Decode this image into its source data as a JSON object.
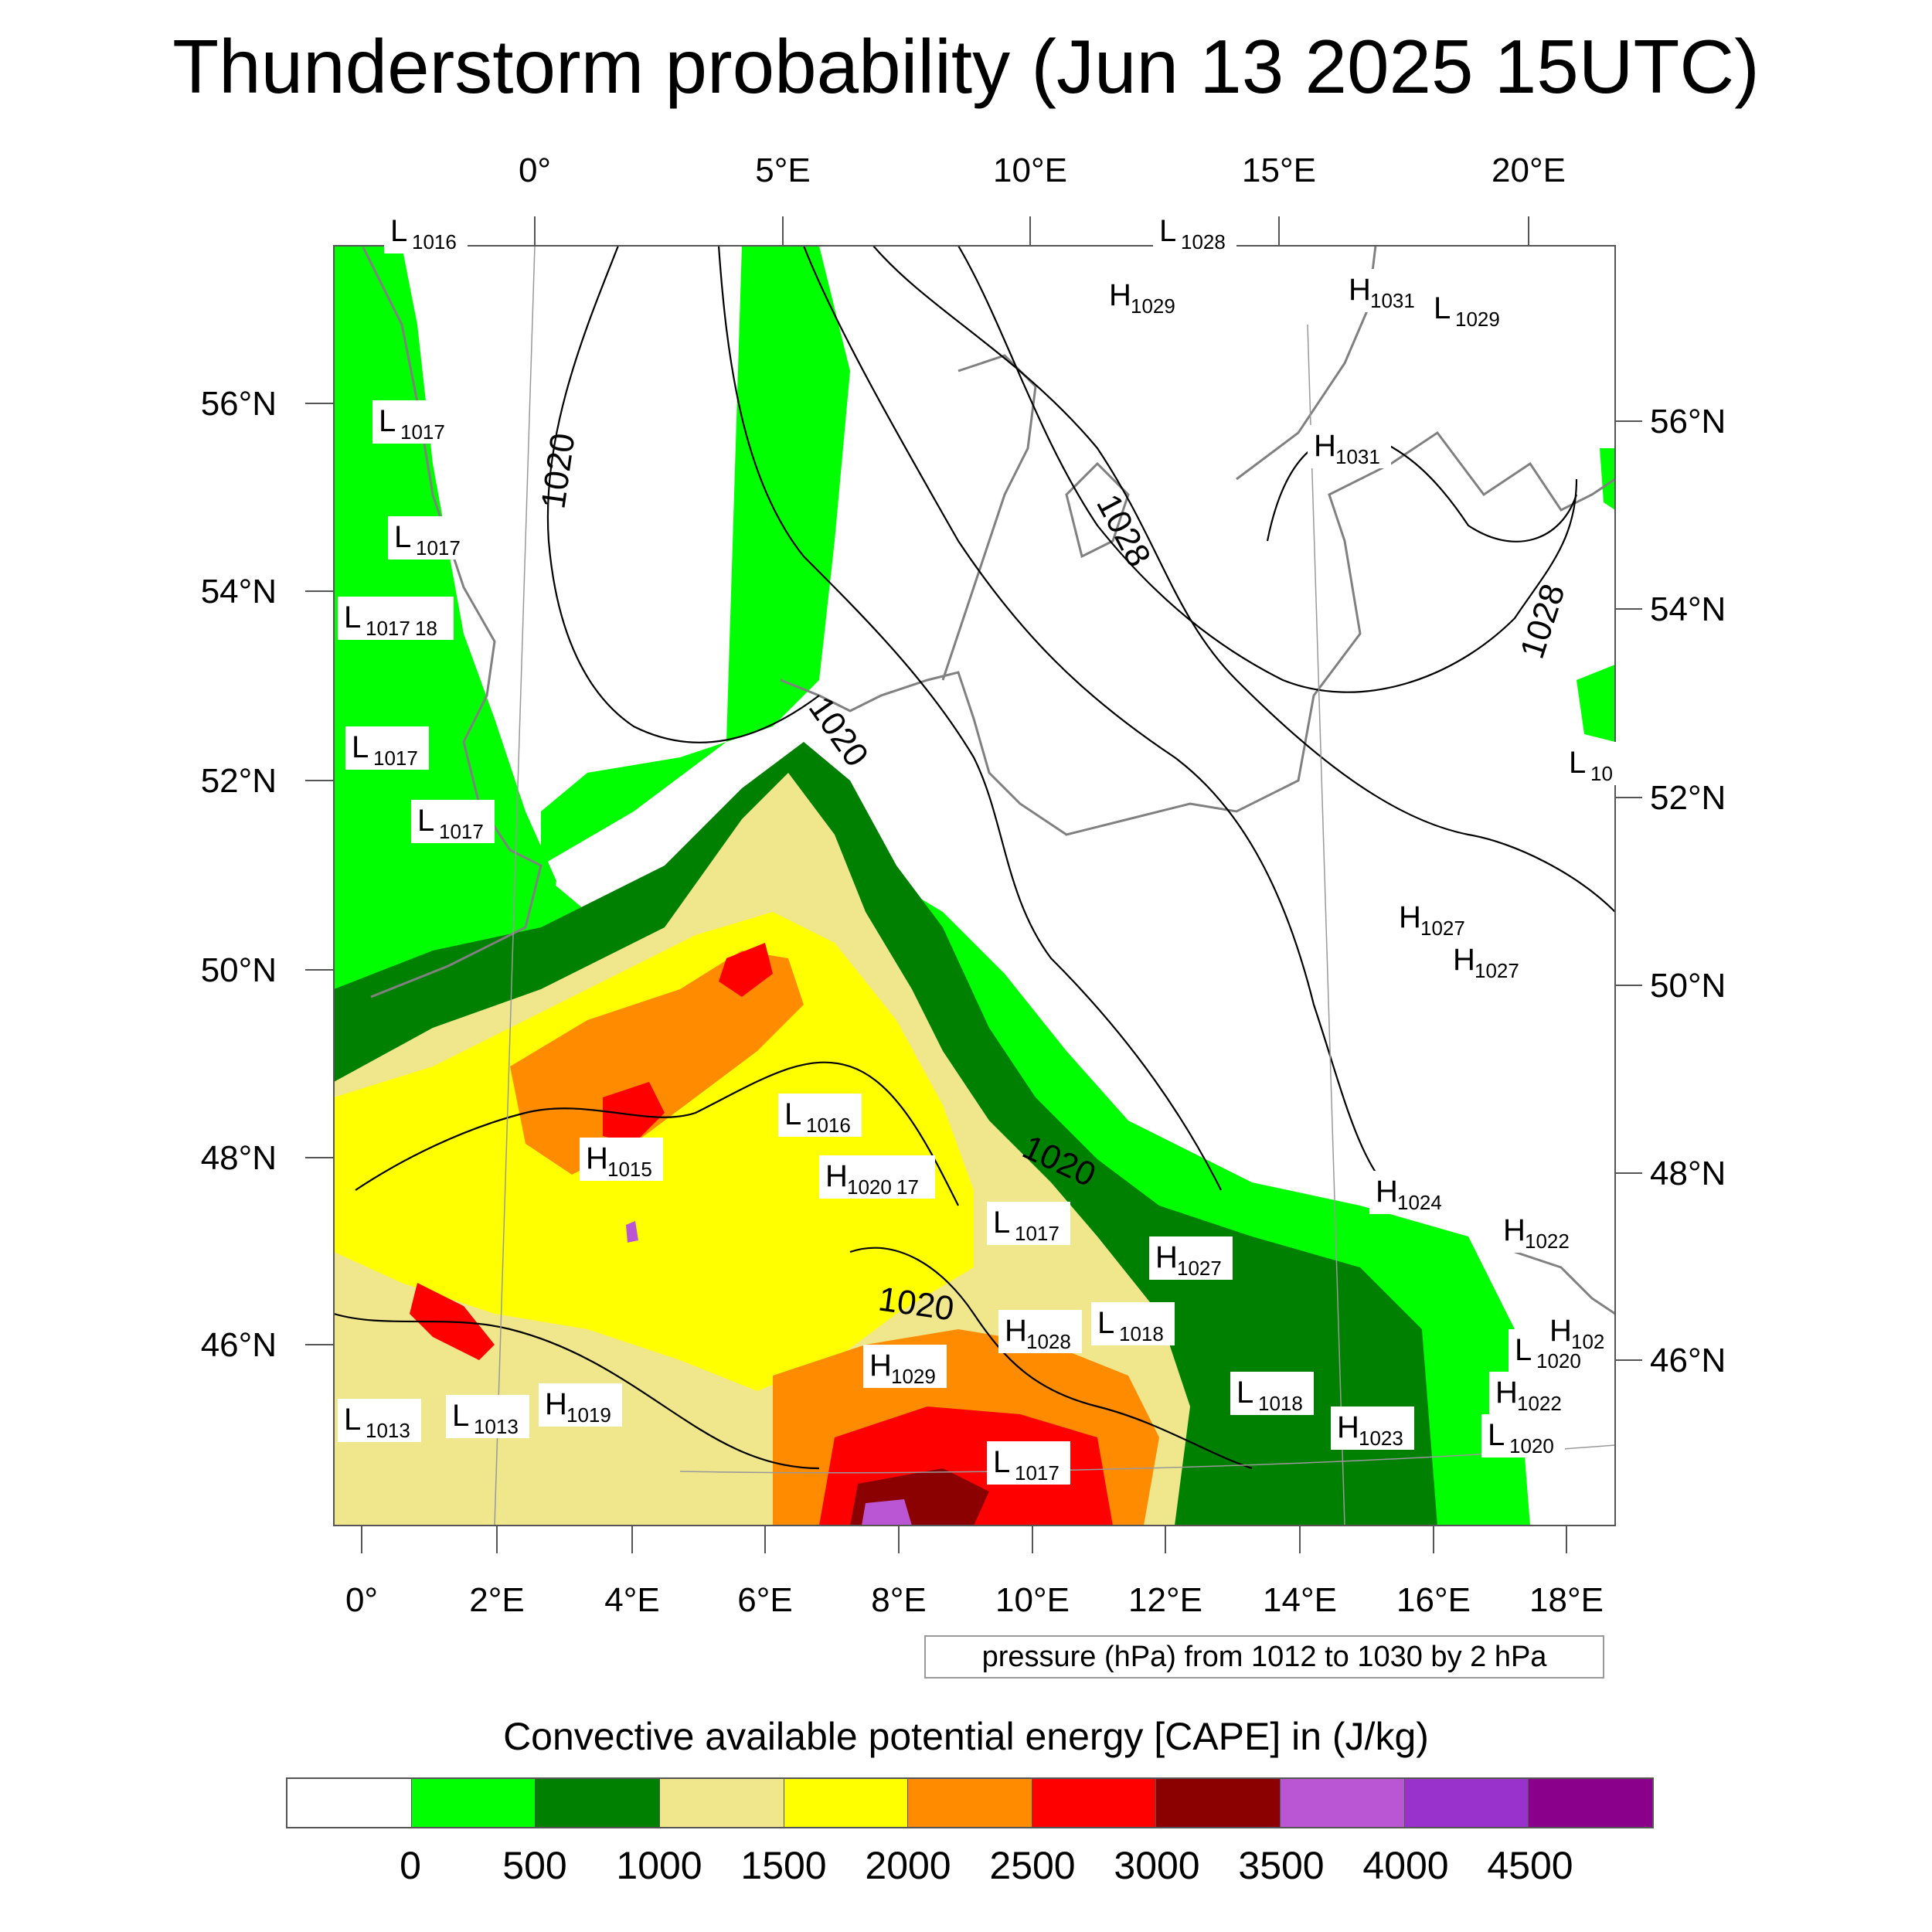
{
  "title": "Thunderstorm probability (Jun 13 2025 15UTC)",
  "top_axis_labels": [
    "0°",
    "5°E",
    "10°E",
    "15°E",
    "20°E"
  ],
  "bottom_axis_labels": [
    "0°",
    "2°E",
    "4°E",
    "6°E",
    "8°E",
    "10°E",
    "12°E",
    "14°E",
    "16°E",
    "18°E"
  ],
  "left_axis_labels": [
    "56°N",
    "54°N",
    "52°N",
    "50°N",
    "48°N",
    "46°N"
  ],
  "right_axis_labels": [
    "56°N",
    "54°N",
    "52°N",
    "50°N",
    "48°N",
    "46°N"
  ],
  "pressure_note": "pressure (hPa) from 1012 to 1030 by 2 hPa",
  "contour_labels": [
    "1020",
    "1020",
    "1028",
    "1028",
    "1020",
    "1020"
  ],
  "pressure_centers": [
    {
      "type": "L",
      "value": "1016"
    },
    {
      "type": "L",
      "value": "1017"
    },
    {
      "type": "L",
      "value": "1017"
    },
    {
      "type": "L",
      "value": "1017",
      "extra": "18"
    },
    {
      "type": "L",
      "value": "1017"
    },
    {
      "type": "L",
      "value": "1017"
    },
    {
      "type": "L",
      "value": "1028"
    },
    {
      "type": "H",
      "value": "1029"
    },
    {
      "type": "H",
      "value": "1031"
    },
    {
      "type": "L",
      "value": "1029"
    },
    {
      "type": "H",
      "value": "1031"
    },
    {
      "type": "L",
      "value": "10"
    },
    {
      "type": "H",
      "value": "1027"
    },
    {
      "type": "H",
      "value": "1027"
    },
    {
      "type": "L",
      "value": "1016"
    },
    {
      "type": "H",
      "value": "1015"
    },
    {
      "type": "H",
      "value": "1020",
      "extra": "17"
    },
    {
      "type": "L",
      "value": "1017"
    },
    {
      "type": "H",
      "value": "1027"
    },
    {
      "type": "H",
      "value": "1024"
    },
    {
      "type": "H",
      "value": "1022"
    },
    {
      "type": "H",
      "value": "1028"
    },
    {
      "type": "L",
      "value": "1018"
    },
    {
      "type": "H",
      "value": "1029"
    },
    {
      "type": "L",
      "value": "1018"
    },
    {
      "type": "H",
      "value": "1019"
    },
    {
      "type": "L",
      "value": "1013"
    },
    {
      "type": "L",
      "value": "1013"
    },
    {
      "type": "H",
      "value": "1023"
    },
    {
      "type": "L",
      "value": "1017"
    },
    {
      "type": "L",
      "value": "1020"
    },
    {
      "type": "H",
      "value": "1022"
    },
    {
      "type": "L",
      "value": "1020"
    },
    {
      "type": "H",
      "value": "102"
    }
  ],
  "colorbar": {
    "title": "Convective available potential energy [CAPE] in (J/kg)",
    "colors": [
      "#ffffff",
      "#00ff00",
      "#008000",
      "#f0e68c",
      "#ffff00",
      "#ff8c00",
      "#ff0000",
      "#8b0000",
      "#ba55d3",
      "#9932cc",
      "#8b008b"
    ],
    "ticks": [
      "0",
      "500",
      "1000",
      "1500",
      "2000",
      "2500",
      "3000",
      "3500",
      "4000",
      "4500"
    ]
  }
}
